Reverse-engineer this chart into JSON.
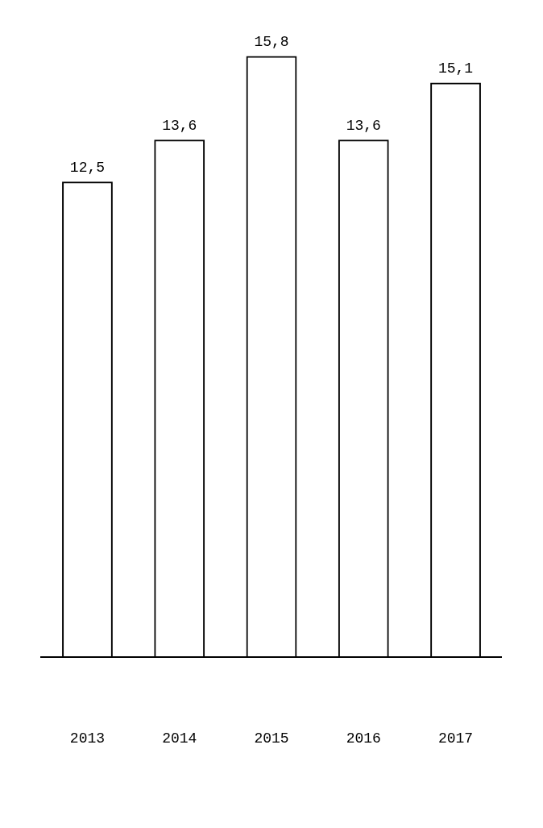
{
  "chart_data": {
    "type": "bar",
    "categories": [
      "2013",
      "2014",
      "2015",
      "2016",
      "2017"
    ],
    "values": [
      12.5,
      13.6,
      15.8,
      13.6,
      15.1
    ],
    "value_labels": [
      "12,5",
      "13,6",
      "15,8",
      "13,6",
      "15,1"
    ],
    "color": "#000000",
    "grid": false,
    "legend": false
  }
}
